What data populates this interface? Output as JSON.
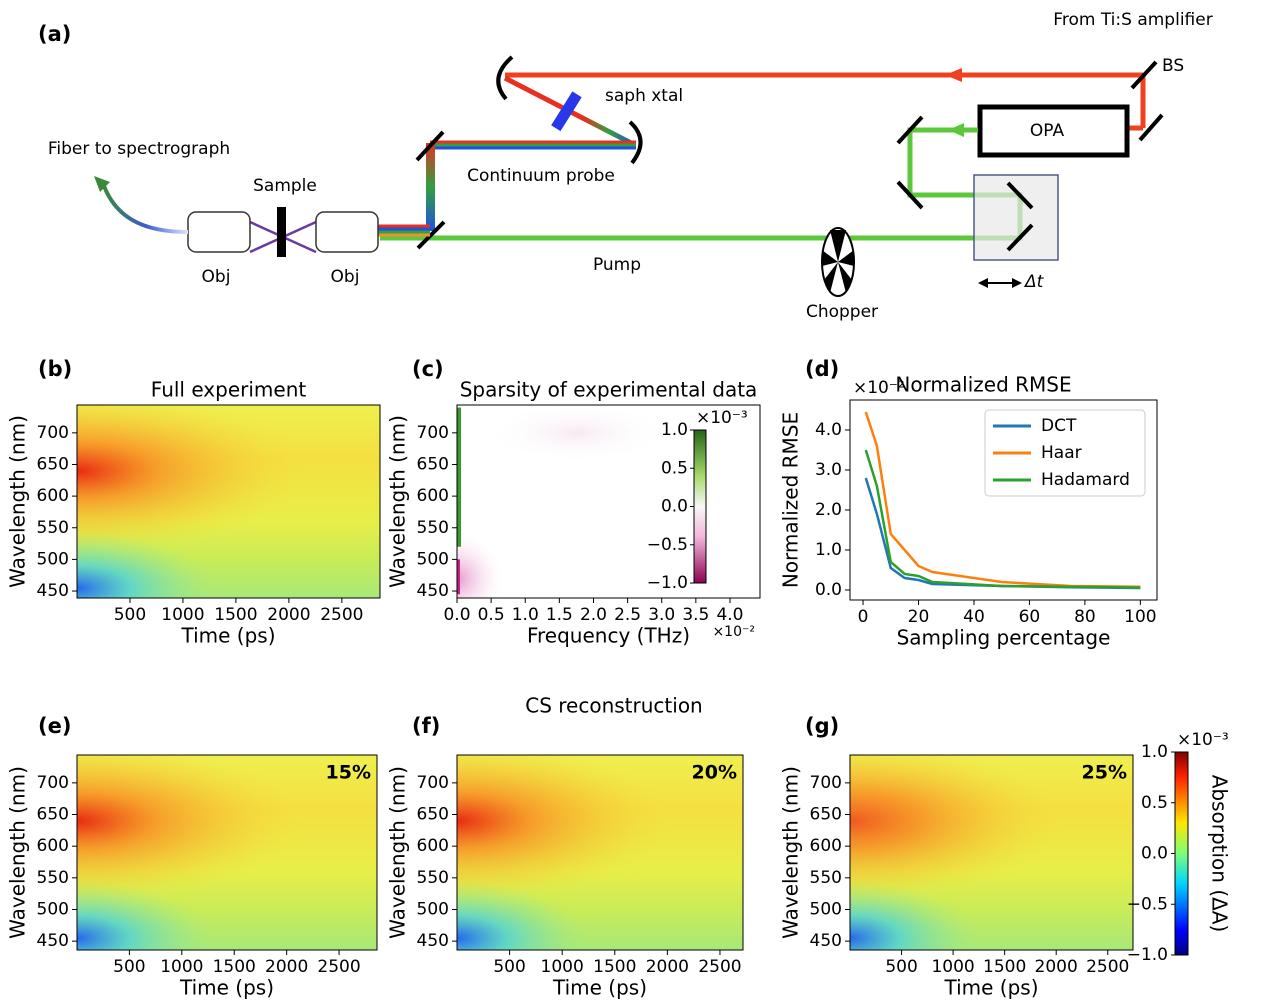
{
  "figure": {
    "panel_a": {
      "label": "(a)",
      "amplifier": "From Ti:S amplifier",
      "bs": "BS",
      "xtal": "saph xtal",
      "opa": "OPA",
      "fiber": "Fiber to spectrograph",
      "sample": "Sample",
      "probe": "Continuum probe",
      "obj_left": "Obj",
      "obj_right": "Obj",
      "pump": "Pump",
      "chopper": "Chopper",
      "delay": "Δt"
    },
    "suptitle": "CS reconstruction"
  },
  "chart_data": [
    {
      "type": "heatmap",
      "panel": "(b)",
      "title": "Full experiment",
      "xlabel": "Time (ps)",
      "ylabel": "Wavelength (nm)",
      "xlim": [
        0,
        2860
      ],
      "xticks": [
        500,
        1000,
        1500,
        2000,
        2500
      ],
      "ylim": [
        439,
        744
      ],
      "yticks": [
        450,
        500,
        550,
        600,
        650,
        700
      ]
    },
    {
      "type": "heatmap",
      "panel": "(c)",
      "title": "Sparsity of experimental data",
      "xlabel": "Frequency (THz)",
      "ylabel": "Wavelength (nm)",
      "xmultiplier": "×10⁻²",
      "xlim": [
        0,
        4.44
      ],
      "xticks": [
        {
          "value": 0,
          "label": "0.0"
        },
        {
          "value": 0.5,
          "label": "0.5"
        },
        {
          "value": 1,
          "label": "1.0"
        },
        {
          "value": 1.5,
          "label": "1.5"
        },
        {
          "value": 2,
          "label": "2.0"
        },
        {
          "value": 2.5,
          "label": "2.5"
        },
        {
          "value": 3,
          "label": "3.0"
        },
        {
          "value": 3.5,
          "label": "3.5"
        },
        {
          "value": 4,
          "label": "4.0"
        }
      ],
      "ylim": [
        439,
        744
      ],
      "yticks": [
        450,
        500,
        550,
        600,
        650,
        700
      ],
      "colorbar": {
        "multiplier": "×10⁻³",
        "lim": [
          -1,
          1
        ],
        "ticks": [
          {
            "value": 1,
            "label": "1.0"
          },
          {
            "value": 0.5,
            "label": "0.5"
          },
          {
            "value": 0,
            "label": "0.0"
          },
          {
            "value": -0.5,
            "label": "−0.5"
          },
          {
            "value": -1,
            "label": "−1.0"
          }
        ]
      }
    },
    {
      "type": "line",
      "panel": "(d)",
      "title": "Normalized RMSE",
      "xlabel": "Sampling percentage",
      "ylabel": "Normalized RMSE",
      "ymultiplier": "×10⁻²",
      "legend": "upper right",
      "xlim": [
        -4.7,
        106
      ],
      "xticks": [
        0,
        20,
        40,
        60,
        80,
        100
      ],
      "ylim": [
        -0.25,
        4.75
      ],
      "yticks": [
        {
          "value": 0,
          "label": "0.0"
        },
        {
          "value": 1,
          "label": "1.0"
        },
        {
          "value": 2,
          "label": "2.0"
        },
        {
          "value": 3,
          "label": "3.0"
        },
        {
          "value": 4,
          "label": "4.0"
        }
      ],
      "x": [
        1,
        5,
        10,
        15,
        20,
        25,
        50,
        75,
        100
      ],
      "series": [
        {
          "name": "DCT",
          "color": "#1f77b4",
          "values": [
            2.8,
            1.9,
            0.55,
            0.3,
            0.25,
            0.15,
            0.1,
            0.07,
            0.05
          ]
        },
        {
          "name": "Haar",
          "color": "#ff7f0e",
          "values": [
            4.45,
            3.6,
            1.4,
            1.0,
            0.6,
            0.45,
            0.2,
            0.1,
            0.08
          ]
        },
        {
          "name": "Hadamard",
          "color": "#2ca02c",
          "values": [
            3.5,
            2.6,
            0.7,
            0.4,
            0.35,
            0.2,
            0.1,
            0.08,
            0.06
          ]
        }
      ]
    },
    {
      "type": "heatmap",
      "panel": "(e)",
      "annotation": "15%",
      "xlabel": "Time (ps)",
      "ylabel": "Wavelength (nm)",
      "xlim": [
        0,
        2862
      ],
      "xticks": [
        500,
        1000,
        1500,
        2000,
        2500
      ],
      "ylim": [
        436,
        744
      ],
      "yticks": [
        450,
        500,
        550,
        600,
        650,
        700
      ]
    },
    {
      "type": "heatmap",
      "panel": "(f)",
      "annotation": "20%",
      "xlabel": "Time (ps)",
      "ylabel": "Wavelength (nm)",
      "xlim": [
        0,
        2719
      ],
      "xticks": [
        500,
        1000,
        1500,
        2000,
        2500
      ],
      "ylim": [
        436,
        744
      ],
      "yticks": [
        450,
        500,
        550,
        600,
        650,
        700
      ]
    },
    {
      "type": "heatmap",
      "panel": "(g)",
      "annotation": "25%",
      "xlabel": "Time (ps)",
      "ylabel": "Wavelength (nm)",
      "xlim": [
        0,
        2745
      ],
      "xticks": [
        500,
        1000,
        1500,
        2000,
        2500
      ],
      "ylim": [
        436,
        744
      ],
      "yticks": [
        450,
        500,
        550,
        600,
        650,
        700
      ],
      "colorbar": {
        "label": "Absorption (ΔA)",
        "multiplier": "×10⁻³",
        "lim": [
          -1,
          1
        ],
        "ticks": [
          {
            "value": 1,
            "label": "1.0"
          },
          {
            "value": 0.5,
            "label": "0.5"
          },
          {
            "value": 0,
            "label": "0.0"
          },
          {
            "value": -0.5,
            "label": "−0.5"
          },
          {
            "value": -1,
            "label": "−1.0"
          }
        ]
      }
    }
  ]
}
